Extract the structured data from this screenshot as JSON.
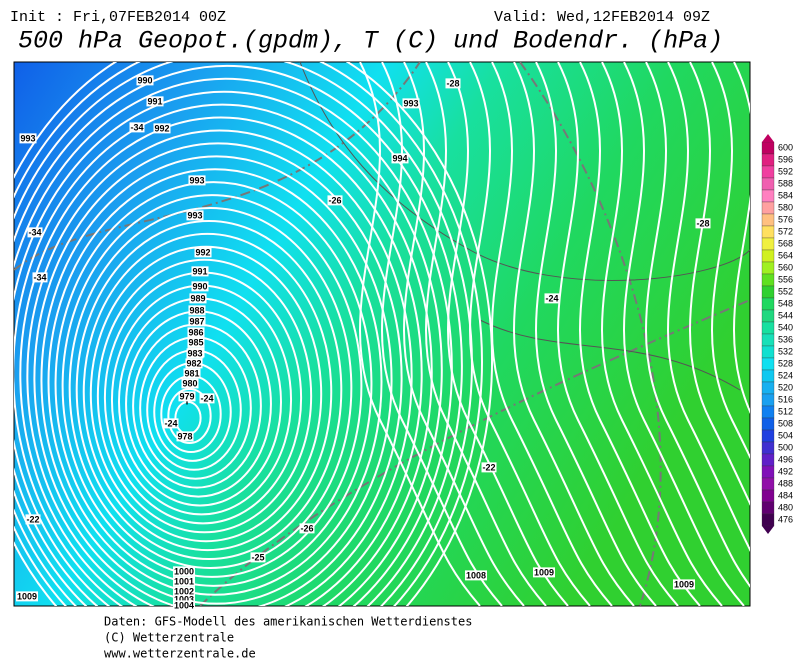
{
  "header": {
    "init": "Init : Fri,07FEB2014 00Z",
    "valid": "Valid: Wed,12FEB2014 09Z",
    "title": "500 hPa Geopot.(gpdm), T (C) und Bodendr. (hPa)"
  },
  "map": {
    "isobar_labels": [
      "990",
      "991",
      "992",
      "993",
      "993",
      "993",
      "992",
      "991",
      "990",
      "989",
      "988",
      "987",
      "986",
      "985",
      "984",
      "983",
      "982",
      "981",
      "980",
      "979",
      "978",
      "994",
      "993",
      "1008",
      "1009",
      "1009",
      "1009",
      "1000",
      "1001",
      "1002",
      "1003",
      "1004"
    ],
    "temperature_labels": [
      "-34",
      "-34",
      "-34",
      "-28",
      "-26",
      "-28",
      "-24",
      "-24",
      "-24",
      "-22",
      "-26",
      "-25",
      "-22"
    ],
    "low_marker": "T"
  },
  "colorbar": {
    "ticks": [
      600,
      596,
      592,
      588,
      584,
      580,
      576,
      572,
      568,
      564,
      560,
      556,
      552,
      548,
      544,
      540,
      536,
      532,
      528,
      524,
      520,
      516,
      512,
      508,
      504,
      500,
      496,
      492,
      488,
      484,
      480,
      476
    ]
  },
  "footer": {
    "lines": [
      "Daten: GFS-Modell des amerikanischen Wetterdienstes",
      "(C) Wetterzentrale",
      "www.wetterzentrale.de"
    ]
  }
}
